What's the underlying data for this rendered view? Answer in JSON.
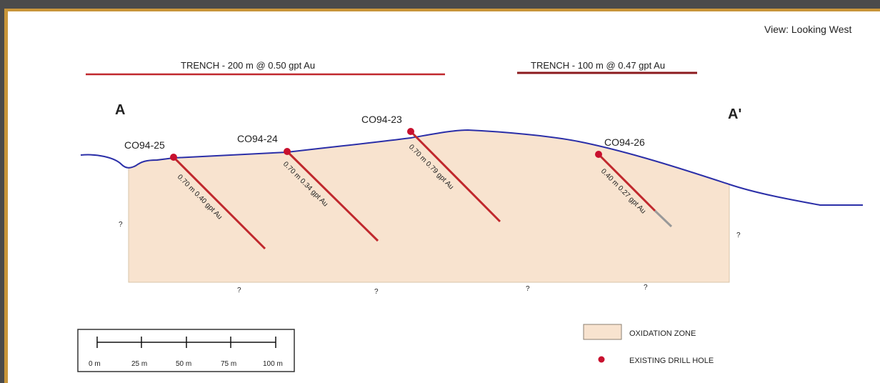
{
  "view_label": "View: Looking West",
  "section_end_left": "A",
  "section_end_right": "A'",
  "trenches": [
    {
      "label": "TRENCH - 200 m @ 0.50 gpt Au",
      "color": "#c0282d"
    },
    {
      "label": "TRENCH - 100 m @ 0.47 gpt Au",
      "color": "#8b1a1d"
    }
  ],
  "drill_holes": [
    {
      "name": "CO94-25",
      "interval": "0.70 m 0.40 gpt Au"
    },
    {
      "name": "CO94-24",
      "interval": "0.70 m 0.34 gpt Au"
    },
    {
      "name": "CO94-23",
      "interval": "0.70 m 0.79 gpt Au"
    },
    {
      "name": "CO94-26",
      "interval": "0.40 m 0.27 gpt Au"
    }
  ],
  "unknown_marker": "?",
  "scale_bar": {
    "labels": [
      "0 m",
      "25 m",
      "50 m",
      "75 m",
      "100 m"
    ]
  },
  "legend": {
    "oxidation_zone": "OXIDATION ZONE",
    "existing_drill_hole": "EXISTING DRILL HOLE"
  },
  "colors": {
    "oxidation_fill": "#f8e3cf",
    "topography": "#2b2fa8",
    "drill_hole": "#c0282d",
    "collar": "#c8102e"
  }
}
